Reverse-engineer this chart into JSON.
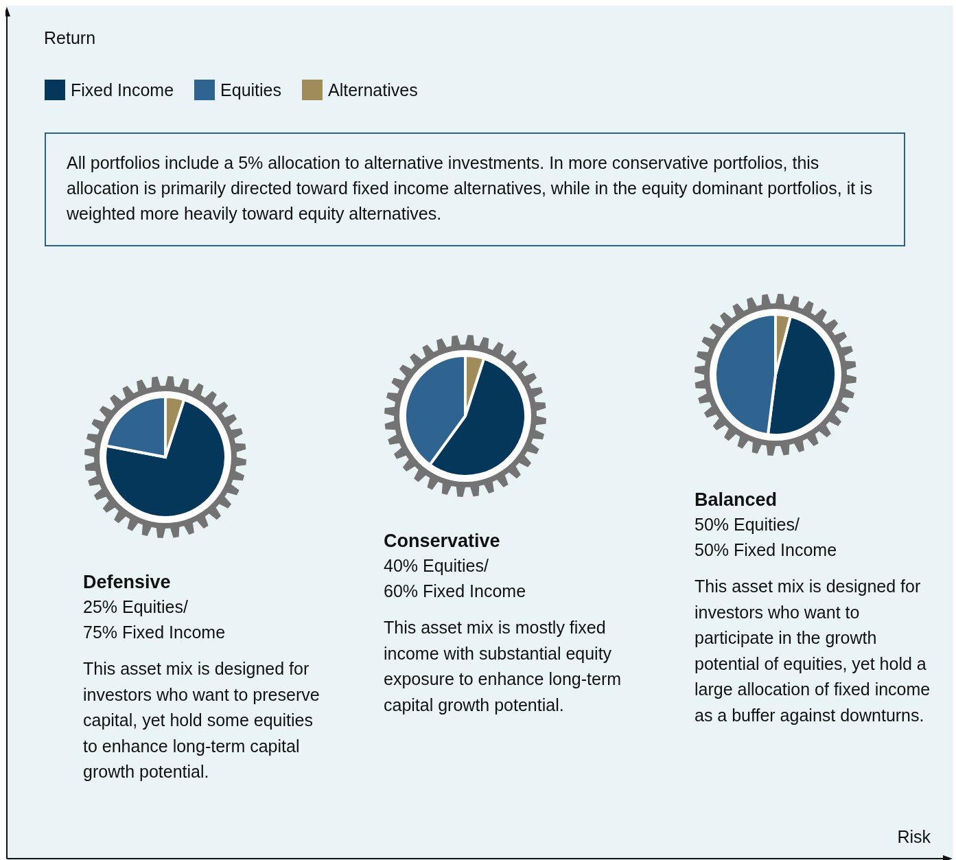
{
  "chart_data": [
    {
      "type": "other",
      "ylabel": "Return",
      "xlabel": "Risk",
      "annotations": [
        "All portfolios include a 5% allocation to alternative investments. In more conservative portfolios, this allocation is primarily directed toward fixed income alternatives, while in the equity dominant portfolios, it is weighted more heavily toward equity alternatives."
      ]
    },
    {
      "type": "pie",
      "title": "Defensive",
      "subtitle": "25% Equities/\n75% Fixed Income",
      "categories": [
        "Fixed Income",
        "Equities",
        "Alternatives"
      ],
      "values": [
        73,
        22,
        5
      ],
      "colors": [
        "#04375a",
        "#2f6390",
        "#a08c5a"
      ],
      "legend": "top",
      "annotations": [
        "This asset mix is designed for investors who want to preserve capital, yet hold some equities to enhance long-term capital growth potential."
      ]
    },
    {
      "type": "pie",
      "title": "Conservative",
      "subtitle": "40% Equities/\n60% Fixed Income",
      "categories": [
        null,
        null,
        null
      ],
      "values": [
        55,
        40,
        5
      ],
      "colors": [
        "#04375a",
        "#2f6390",
        "#a08c5a"
      ],
      "annotations": [
        "This asset mix is mostly fixed income with substantial equity exposure to enhance long-term capital growth potential."
      ]
    },
    {
      "type": "pie",
      "title": "Balanced",
      "subtitle": "50% Equities/\n50% Fixed Income",
      "categories": [
        null,
        null,
        null
      ],
      "values": [
        48,
        48,
        4
      ],
      "colors": [
        "#04375a",
        "#2f6390",
        "#a08c5a"
      ],
      "annotations": [
        "This asset mix is designed for investors who want to participate in the growth potential of equities, yet hold a large allocation of fixed income as a buffer against downturns."
      ]
    }
  ]
}
